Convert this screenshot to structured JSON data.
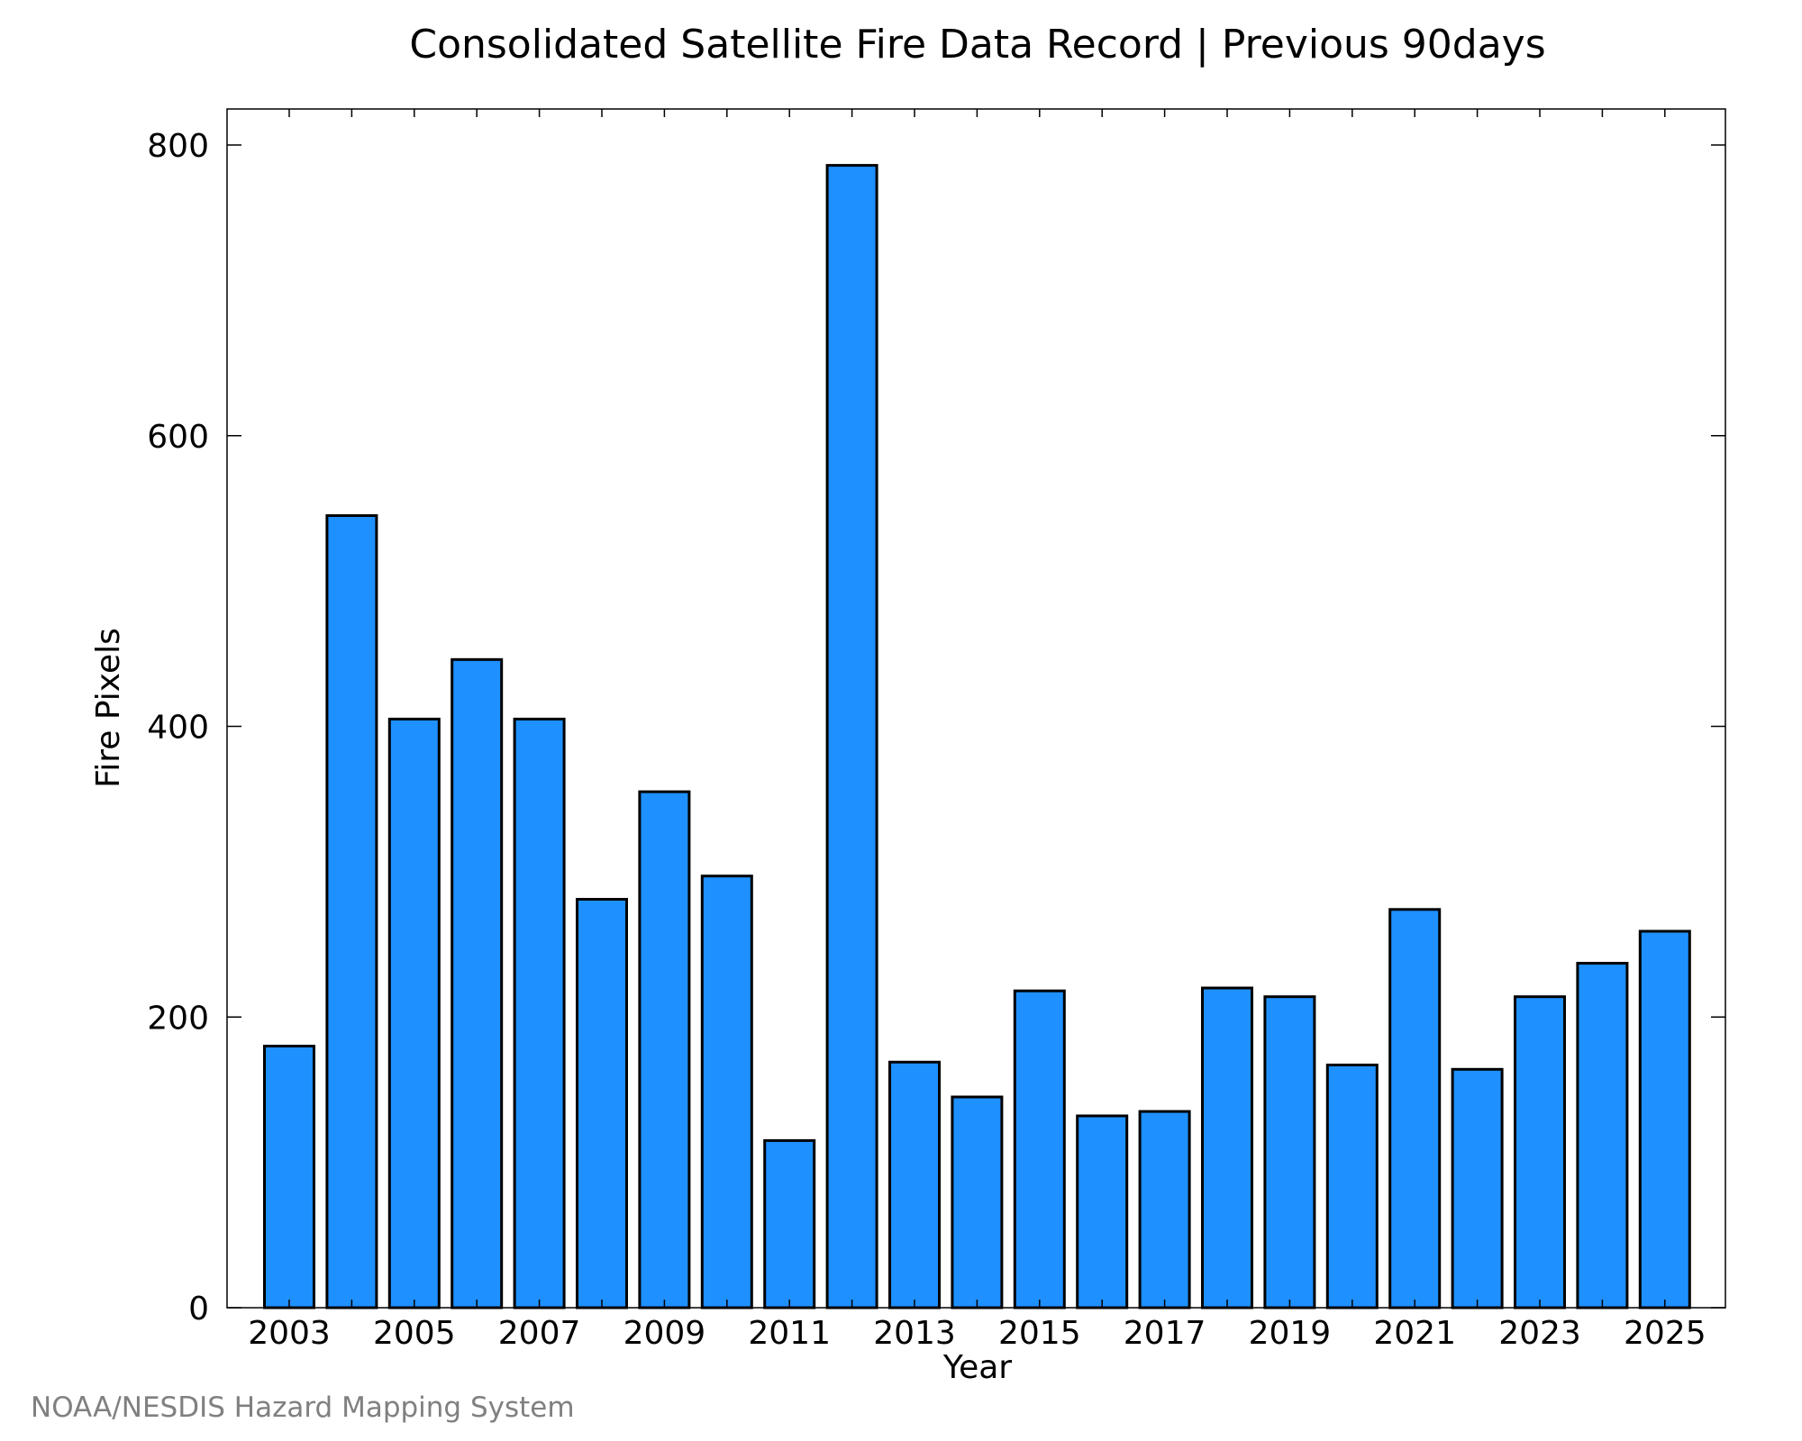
{
  "credit": "NOAA/NESDIS Hazard Mapping System",
  "chart_data": {
    "type": "bar",
    "title": "Consolidated Satellite Fire Data Record | Previous 90days",
    "xlabel": "Year",
    "ylabel": "Fire Pixels",
    "categories": [
      "2003",
      "2004",
      "2005",
      "2006",
      "2007",
      "2008",
      "2009",
      "2010",
      "2011",
      "2012",
      "2013",
      "2014",
      "2015",
      "2016",
      "2017",
      "2018",
      "2019",
      "2020",
      "2021",
      "2022",
      "2023",
      "2024",
      "2025"
    ],
    "values": [
      180,
      545,
      405,
      446,
      405,
      281,
      355,
      297,
      115,
      786,
      169,
      145,
      218,
      132,
      135,
      220,
      214,
      167,
      274,
      164,
      214,
      237,
      259
    ],
    "xtick_labels": [
      "2003",
      "2005",
      "2007",
      "2009",
      "2011",
      "2013",
      "2015",
      "2017",
      "2019",
      "2021",
      "2023",
      "2025"
    ],
    "yticks": [
      0,
      200,
      400,
      600,
      800
    ],
    "ylim": [
      0,
      825
    ],
    "grid": false,
    "bar_color": "#1e90ff"
  }
}
